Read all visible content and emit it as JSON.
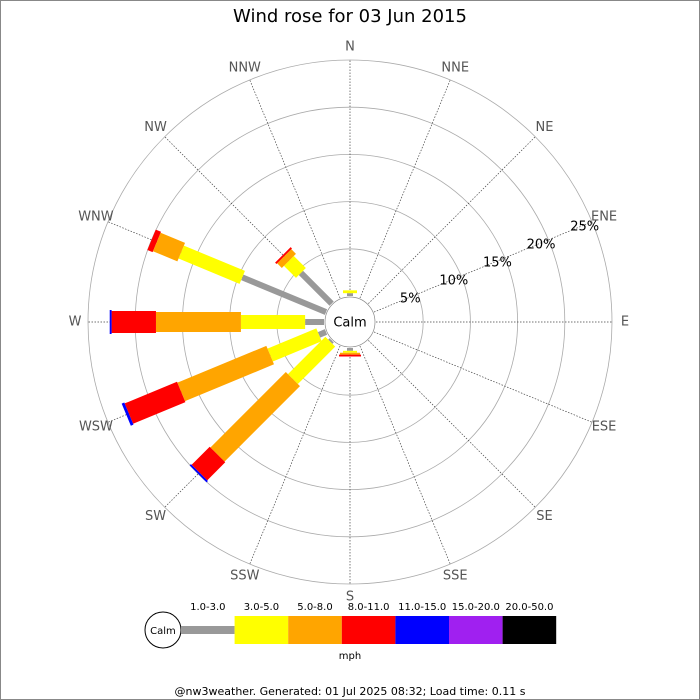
{
  "chart_data": {
    "type": "windrose",
    "title": "Wind rose for 03 Jun 2015",
    "calm_label": "Calm",
    "unit": "mph",
    "footer": "@nw3weather. Generated: 01 Jul 2025 08:32; Load time: 0.11 s",
    "categories": [
      "N",
      "NNE",
      "NE",
      "ENE",
      "E",
      "ESE",
      "SE",
      "SSE",
      "S",
      "SSW",
      "SW",
      "WSW",
      "W",
      "WNW",
      "NW",
      "NNW"
    ],
    "ylim": [
      0,
      25
    ],
    "yticks": [
      {
        "value": 5,
        "label": "5%"
      },
      {
        "value": 10,
        "label": "10%"
      },
      {
        "value": 15,
        "label": "15%"
      },
      {
        "value": 20,
        "label": "20%"
      },
      {
        "value": 25,
        "label": "25%"
      }
    ],
    "series": [
      {
        "name": "1.0-3.0",
        "color": "#999999",
        "values": [
          0.3,
          0,
          0,
          0,
          0,
          0,
          0,
          0,
          0.3,
          0,
          0.2,
          0.8,
          2.0,
          9.6,
          4.6,
          0
        ]
      },
      {
        "name": "3.0-5.0",
        "color": "#ffff00",
        "values": [
          0.3,
          0,
          0,
          0,
          0,
          0,
          0,
          0,
          0.2,
          0,
          5.6,
          5.6,
          6.8,
          7.0,
          1.8,
          0
        ]
      },
      {
        "name": "5.0-8.0",
        "color": "#ffa500",
        "values": [
          0,
          0,
          0,
          0,
          0,
          0,
          0,
          0,
          0.2,
          0,
          11.3,
          10.2,
          9.0,
          2.8,
          0.7,
          0
        ]
      },
      {
        "name": "8.0-11.0",
        "color": "#ff0000",
        "values": [
          0,
          0,
          0,
          0,
          0,
          0,
          0,
          0,
          0.2,
          0,
          2.7,
          6.0,
          4.7,
          0.6,
          0.2,
          0
        ]
      },
      {
        "name": "11.0-15.0",
        "color": "#0000ff",
        "values": [
          0,
          0,
          0,
          0,
          0,
          0,
          0,
          0,
          0,
          0,
          0.2,
          0.3,
          0.2,
          0,
          0,
          0
        ]
      },
      {
        "name": "15.0-20.0",
        "color": "#a020f0",
        "values": [
          0,
          0,
          0,
          0,
          0,
          0,
          0,
          0,
          0,
          0,
          0,
          0,
          0,
          0,
          0,
          0
        ]
      },
      {
        "name": "20.0-50.0",
        "color": "#000000",
        "values": [
          0,
          0,
          0,
          0,
          0,
          0,
          0,
          0,
          0,
          0,
          0,
          0,
          0,
          0,
          0,
          0
        ]
      }
    ]
  }
}
